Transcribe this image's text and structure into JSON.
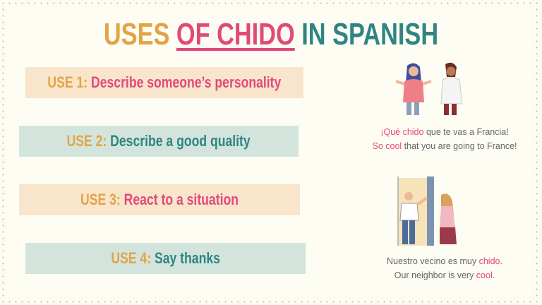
{
  "title": {
    "part1": "USES",
    "part2": "OF CHIDO",
    "part3": "IN SPANISH"
  },
  "uses": [
    {
      "label": "USE 1:",
      "text": "Describe someone’s personality"
    },
    {
      "label": "USE 2:",
      "text": "Describe a good quality"
    },
    {
      "label": "USE 3:",
      "text": "React to a situation"
    },
    {
      "label": "USE 4:",
      "text": "Say thanks"
    }
  ],
  "example1": {
    "es": {
      "pre": "¡Qué ",
      "hl": "chido",
      "post": " que te vas a Francia!"
    },
    "en": {
      "pre": "",
      "hl": "So cool",
      "post": " that you are going to France!"
    }
  },
  "example2": {
    "es": {
      "pre": "Nuestro vecino es muy ",
      "hl": "chido",
      "post": "."
    },
    "en": {
      "pre": "Our neighbor is very ",
      "hl": "cool",
      "post": "."
    }
  },
  "colors": {
    "orange": "#e2a445",
    "pink": "#e2497b",
    "teal": "#2f8583",
    "peach": "#f8e5cb",
    "mint": "#d3e4dc"
  }
}
